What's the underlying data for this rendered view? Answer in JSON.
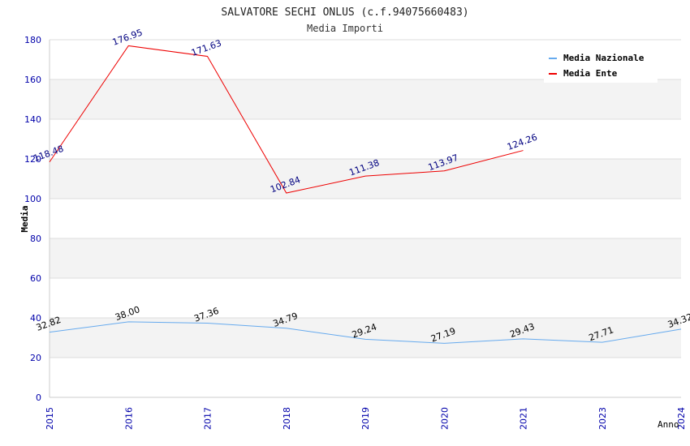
{
  "chart_data": {
    "type": "line",
    "title": "SALVATORE SECHI ONLUS (c.f.94075660483)",
    "subtitle": "Media Importi",
    "xlabel": "Anno",
    "ylabel": "Media",
    "categories": [
      "2015",
      "2016",
      "2017",
      "2018",
      "2019",
      "2020",
      "2021",
      "2023",
      "2024"
    ],
    "ylim": [
      0,
      180
    ],
    "yticks": [
      "0",
      "20",
      "40",
      "60",
      "80",
      "100",
      "120",
      "140",
      "160",
      "180"
    ],
    "grid": true,
    "legend_position": "top-right",
    "series": [
      {
        "name": "Media Nazionale",
        "color": "#66aaee",
        "label_color": "#000000",
        "values": [
          32.82,
          38.0,
          37.36,
          34.79,
          29.24,
          27.19,
          29.43,
          27.71,
          34.32
        ],
        "labels": [
          "32.82",
          "38.00",
          "37.36",
          "34.79",
          "29.24",
          "27.19",
          "29.43",
          "27.71",
          "34.32"
        ]
      },
      {
        "name": "Media Ente",
        "color": "#ee0000",
        "label_color": "#000080",
        "values": [
          118.48,
          176.95,
          171.63,
          102.84,
          111.38,
          113.97,
          124.26,
          null,
          null
        ],
        "labels": [
          "118.48",
          "176.95",
          "171.63",
          "102.84",
          "111.38",
          "113.97",
          "124.26",
          null,
          null
        ]
      }
    ]
  },
  "colors": {
    "tick_labels": "#0000aa",
    "band_fill": "#f3f3f3",
    "grid_line": "#dddddd",
    "axis_line": "#cccccc"
  }
}
